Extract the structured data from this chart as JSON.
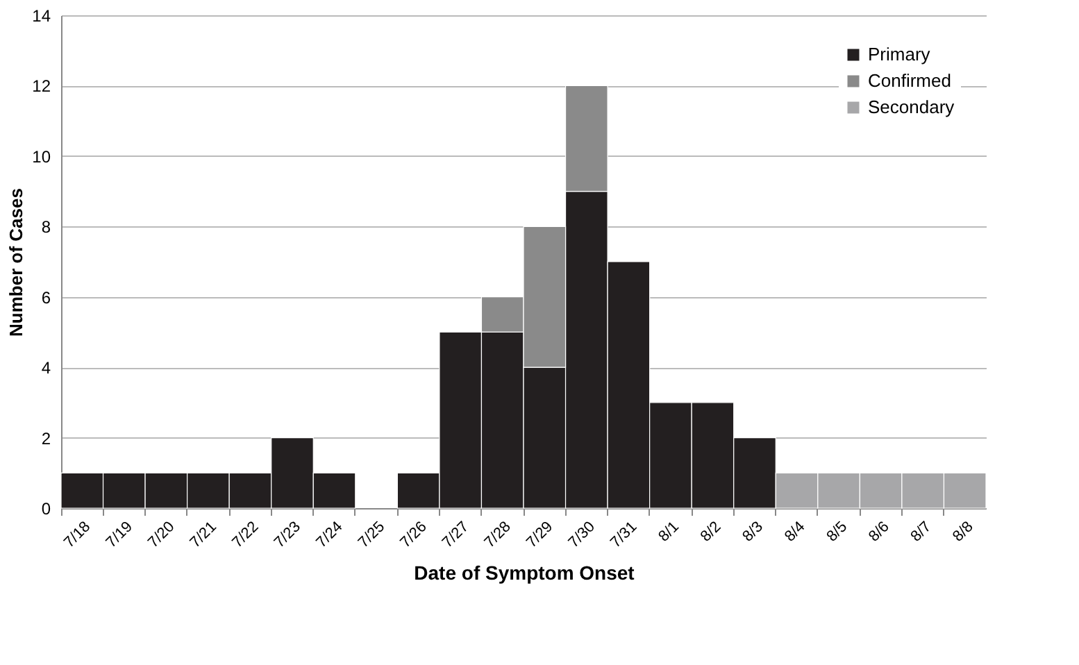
{
  "chart_data": {
    "type": "bar",
    "stacked": true,
    "xlabel": "Date of Symptom Onset",
    "ylabel": "Number of Cases",
    "categories": [
      "7/18",
      "7/19",
      "7/20",
      "7/21",
      "7/22",
      "7/23",
      "7/24",
      "7/25",
      "7/26",
      "7/27",
      "7/28",
      "7/29",
      "7/30",
      "7/31",
      "8/1",
      "8/2",
      "8/3",
      "8/4",
      "8/5",
      "8/6",
      "8/7",
      "8/8"
    ],
    "series": [
      {
        "name": "Primary",
        "color": "#231f20",
        "values": [
          1,
          1,
          1,
          1,
          1,
          2,
          1,
          0,
          1,
          5,
          5,
          4,
          9,
          7,
          3,
          3,
          2,
          null,
          null,
          null,
          null,
          null
        ]
      },
      {
        "name": "Confirmed",
        "color": "#8a8a8a",
        "values": [
          null,
          null,
          null,
          null,
          null,
          null,
          null,
          null,
          null,
          null,
          1,
          4,
          3,
          null,
          null,
          null,
          null,
          null,
          null,
          null,
          null,
          null
        ]
      },
      {
        "name": "Secondary",
        "color": "#a7a7a9",
        "values": [
          null,
          null,
          null,
          null,
          null,
          null,
          null,
          null,
          null,
          null,
          null,
          null,
          null,
          null,
          null,
          null,
          null,
          1,
          1,
          1,
          1,
          1
        ]
      }
    ],
    "ylim": [
      0,
      14
    ],
    "yticks": [
      0,
      2,
      4,
      6,
      8,
      10,
      12,
      14
    ],
    "grid": "y",
    "legend": "top right"
  }
}
